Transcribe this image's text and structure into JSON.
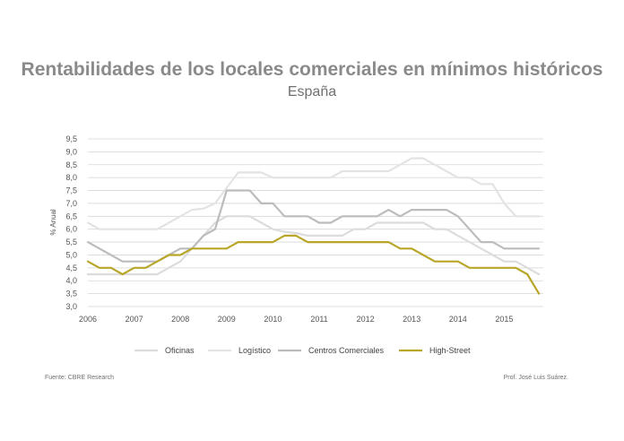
{
  "title": "Rentabilidades de los locales comerciales en mínimos históricos",
  "subtitle": "España",
  "source": "Fuente: CBRE Research",
  "credit": "Prof. José Luis Suárez.",
  "chart_data": {
    "type": "line",
    "title": "Rentabilidades de los locales comerciales en mínimos históricos",
    "subtitle": "España",
    "ylabel": "% Anual",
    "xlabel": "",
    "xlim": [
      2006,
      2016
    ],
    "ylim": [
      3.0,
      9.5
    ],
    "yticks": [
      "9,5",
      "9,0",
      "8,5",
      "8,0",
      "7,5",
      "7,0",
      "6,5",
      "6,0",
      "5,5",
      "5,0",
      "4,5",
      "4,0",
      "3,5",
      "3,0"
    ],
    "ytick_values": [
      9.5,
      9.0,
      8.5,
      8.0,
      7.5,
      7.0,
      6.5,
      6.0,
      5.5,
      5.0,
      4.5,
      4.0,
      3.5,
      3.0
    ],
    "xticks": [
      "2006",
      "2007",
      "2008",
      "2009",
      "2010",
      "2011",
      "2012",
      "2013",
      "2014",
      "2015"
    ],
    "xtick_values": [
      2006,
      2007,
      2008,
      2009,
      2010,
      2011,
      2012,
      2013,
      2014,
      2015
    ],
    "grid": "horizontal",
    "legend_position": "bottom",
    "series": [
      {
        "name": "Oficinas",
        "color": "#dcdcdc",
        "points": [
          [
            2006,
            4.25
          ],
          [
            2006.25,
            4.25
          ],
          [
            2006.5,
            4.25
          ],
          [
            2006.75,
            4.25
          ],
          [
            2007,
            4.25
          ],
          [
            2007.25,
            4.25
          ],
          [
            2007.5,
            4.25
          ],
          [
            2007.75,
            4.5
          ],
          [
            2008,
            4.75
          ],
          [
            2008.25,
            5.25
          ],
          [
            2008.5,
            5.75
          ],
          [
            2008.75,
            6.25
          ],
          [
            2009,
            6.5
          ],
          [
            2009.25,
            6.5
          ],
          [
            2009.5,
            6.5
          ],
          [
            2009.75,
            6.25
          ],
          [
            2010,
            6.0
          ],
          [
            2010.25,
            5.9
          ],
          [
            2010.5,
            5.85
          ],
          [
            2010.75,
            5.75
          ],
          [
            2011,
            5.75
          ],
          [
            2011.25,
            5.75
          ],
          [
            2011.5,
            5.75
          ],
          [
            2011.75,
            6.0
          ],
          [
            2012,
            6.0
          ],
          [
            2012.25,
            6.25
          ],
          [
            2012.5,
            6.25
          ],
          [
            2012.75,
            6.25
          ],
          [
            2013,
            6.25
          ],
          [
            2013.25,
            6.25
          ],
          [
            2013.5,
            6.0
          ],
          [
            2013.75,
            6.0
          ],
          [
            2014,
            5.75
          ],
          [
            2014.25,
            5.5
          ],
          [
            2014.5,
            5.25
          ],
          [
            2014.75,
            5.0
          ],
          [
            2015,
            4.75
          ],
          [
            2015.25,
            4.75
          ],
          [
            2015.5,
            4.5
          ],
          [
            2015.75,
            4.25
          ]
        ]
      },
      {
        "name": "Logístico",
        "color": "#e3e3e3",
        "points": [
          [
            2006,
            6.25
          ],
          [
            2006.25,
            6.0
          ],
          [
            2006.5,
            6.0
          ],
          [
            2006.75,
            6.0
          ],
          [
            2007,
            6.0
          ],
          [
            2007.25,
            6.0
          ],
          [
            2007.5,
            6.0
          ],
          [
            2007.75,
            6.25
          ],
          [
            2008,
            6.5
          ],
          [
            2008.25,
            6.75
          ],
          [
            2008.5,
            6.8
          ],
          [
            2008.75,
            7.0
          ],
          [
            2009,
            7.6
          ],
          [
            2009.25,
            8.2
          ],
          [
            2009.5,
            8.2
          ],
          [
            2009.75,
            8.2
          ],
          [
            2010,
            8.0
          ],
          [
            2010.25,
            8.0
          ],
          [
            2010.5,
            8.0
          ],
          [
            2010.75,
            8.0
          ],
          [
            2011,
            8.0
          ],
          [
            2011.25,
            8.0
          ],
          [
            2011.5,
            8.25
          ],
          [
            2011.75,
            8.25
          ],
          [
            2012,
            8.25
          ],
          [
            2012.25,
            8.25
          ],
          [
            2012.5,
            8.25
          ],
          [
            2012.75,
            8.5
          ],
          [
            2013,
            8.75
          ],
          [
            2013.25,
            8.75
          ],
          [
            2013.5,
            8.5
          ],
          [
            2013.75,
            8.25
          ],
          [
            2014,
            8.0
          ],
          [
            2014.25,
            8.0
          ],
          [
            2014.5,
            7.75
          ],
          [
            2014.75,
            7.75
          ],
          [
            2015,
            7.0
          ],
          [
            2015.25,
            6.5
          ],
          [
            2015.5,
            6.5
          ],
          [
            2015.75,
            6.5
          ]
        ]
      },
      {
        "name": "Centros Comerciales",
        "color": "#bcbcbc",
        "points": [
          [
            2006,
            5.5
          ],
          [
            2006.25,
            5.25
          ],
          [
            2006.5,
            5.0
          ],
          [
            2006.75,
            4.75
          ],
          [
            2007,
            4.75
          ],
          [
            2007.25,
            4.75
          ],
          [
            2007.5,
            4.75
          ],
          [
            2007.75,
            5.0
          ],
          [
            2008,
            5.25
          ],
          [
            2008.25,
            5.25
          ],
          [
            2008.5,
            5.75
          ],
          [
            2008.75,
            6.0
          ],
          [
            2009,
            7.5
          ],
          [
            2009.25,
            7.5
          ],
          [
            2009.5,
            7.5
          ],
          [
            2009.75,
            7.0
          ],
          [
            2010,
            7.0
          ],
          [
            2010.25,
            6.5
          ],
          [
            2010.5,
            6.5
          ],
          [
            2010.75,
            6.5
          ],
          [
            2011,
            6.25
          ],
          [
            2011.25,
            6.25
          ],
          [
            2011.5,
            6.5
          ],
          [
            2011.75,
            6.5
          ],
          [
            2012,
            6.5
          ],
          [
            2012.25,
            6.5
          ],
          [
            2012.5,
            6.75
          ],
          [
            2012.75,
            6.5
          ],
          [
            2013,
            6.75
          ],
          [
            2013.25,
            6.75
          ],
          [
            2013.5,
            6.75
          ],
          [
            2013.75,
            6.75
          ],
          [
            2014,
            6.5
          ],
          [
            2014.25,
            6.0
          ],
          [
            2014.5,
            5.5
          ],
          [
            2014.75,
            5.5
          ],
          [
            2015,
            5.25
          ],
          [
            2015.25,
            5.25
          ],
          [
            2015.5,
            5.25
          ],
          [
            2015.75,
            5.25
          ]
        ]
      },
      {
        "name": "High-Street",
        "color": "#b8a628",
        "points": [
          [
            2006,
            4.75
          ],
          [
            2006.25,
            4.5
          ],
          [
            2006.5,
            4.5
          ],
          [
            2006.75,
            4.25
          ],
          [
            2007,
            4.5
          ],
          [
            2007.25,
            4.5
          ],
          [
            2007.5,
            4.75
          ],
          [
            2007.75,
            5.0
          ],
          [
            2008,
            5.0
          ],
          [
            2008.25,
            5.25
          ],
          [
            2008.5,
            5.25
          ],
          [
            2008.75,
            5.25
          ],
          [
            2009,
            5.25
          ],
          [
            2009.25,
            5.5
          ],
          [
            2009.5,
            5.5
          ],
          [
            2009.75,
            5.5
          ],
          [
            2010,
            5.5
          ],
          [
            2010.25,
            5.75
          ],
          [
            2010.5,
            5.75
          ],
          [
            2010.75,
            5.5
          ],
          [
            2011,
            5.5
          ],
          [
            2011.25,
            5.5
          ],
          [
            2011.5,
            5.5
          ],
          [
            2011.75,
            5.5
          ],
          [
            2012,
            5.5
          ],
          [
            2012.25,
            5.5
          ],
          [
            2012.5,
            5.5
          ],
          [
            2012.75,
            5.25
          ],
          [
            2013,
            5.25
          ],
          [
            2013.25,
            5.0
          ],
          [
            2013.5,
            4.75
          ],
          [
            2013.75,
            4.75
          ],
          [
            2014,
            4.75
          ],
          [
            2014.25,
            4.5
          ],
          [
            2014.5,
            4.5
          ],
          [
            2014.75,
            4.5
          ],
          [
            2015,
            4.5
          ],
          [
            2015.25,
            4.5
          ],
          [
            2015.5,
            4.25
          ],
          [
            2015.75,
            3.5
          ]
        ]
      }
    ]
  }
}
